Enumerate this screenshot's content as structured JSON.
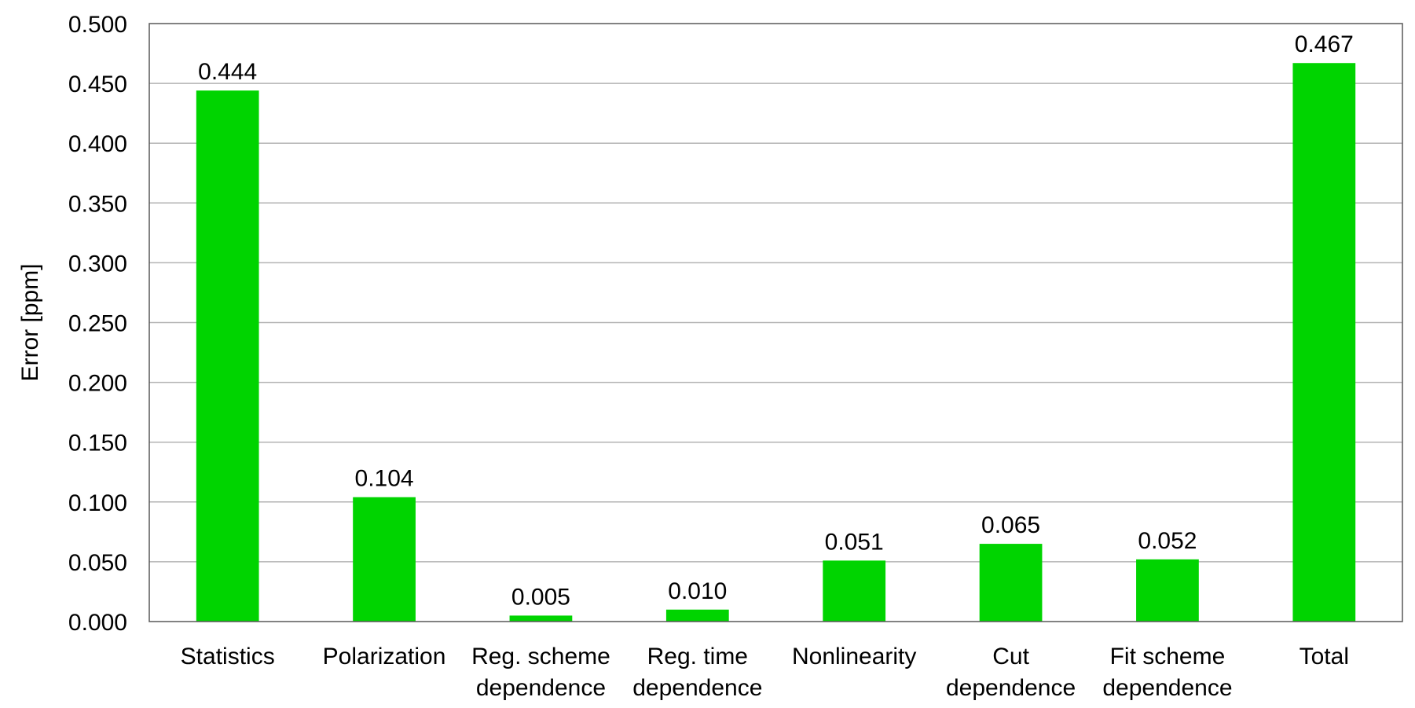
{
  "chart_data": {
    "type": "bar",
    "title": "",
    "xlabel": "",
    "ylabel": "Error [ppm]",
    "ylim": [
      0,
      0.5
    ],
    "ytick_step": 0.05,
    "ytick_labels": [
      "0.000",
      "0.050",
      "0.100",
      "0.150",
      "0.200",
      "0.250",
      "0.300",
      "0.350",
      "0.400",
      "0.450",
      "0.500"
    ],
    "grid": true,
    "legend": "none",
    "bar_color": "#00d400",
    "categories": [
      [
        "Statistics"
      ],
      [
        "Polarization"
      ],
      [
        "Reg. scheme",
        "dependence"
      ],
      [
        "Reg. time",
        "dependence"
      ],
      [
        "Nonlinearity"
      ],
      [
        "Cut",
        "dependence"
      ],
      [
        "Fit scheme",
        "dependence"
      ],
      [
        "Total"
      ]
    ],
    "values": [
      0.444,
      0.104,
      0.005,
      0.01,
      0.051,
      0.065,
      0.052,
      0.467
    ],
    "data_labels": [
      "0.444",
      "0.104",
      "0.005",
      "0.010",
      "0.051",
      "0.065",
      "0.052",
      "0.467"
    ]
  }
}
